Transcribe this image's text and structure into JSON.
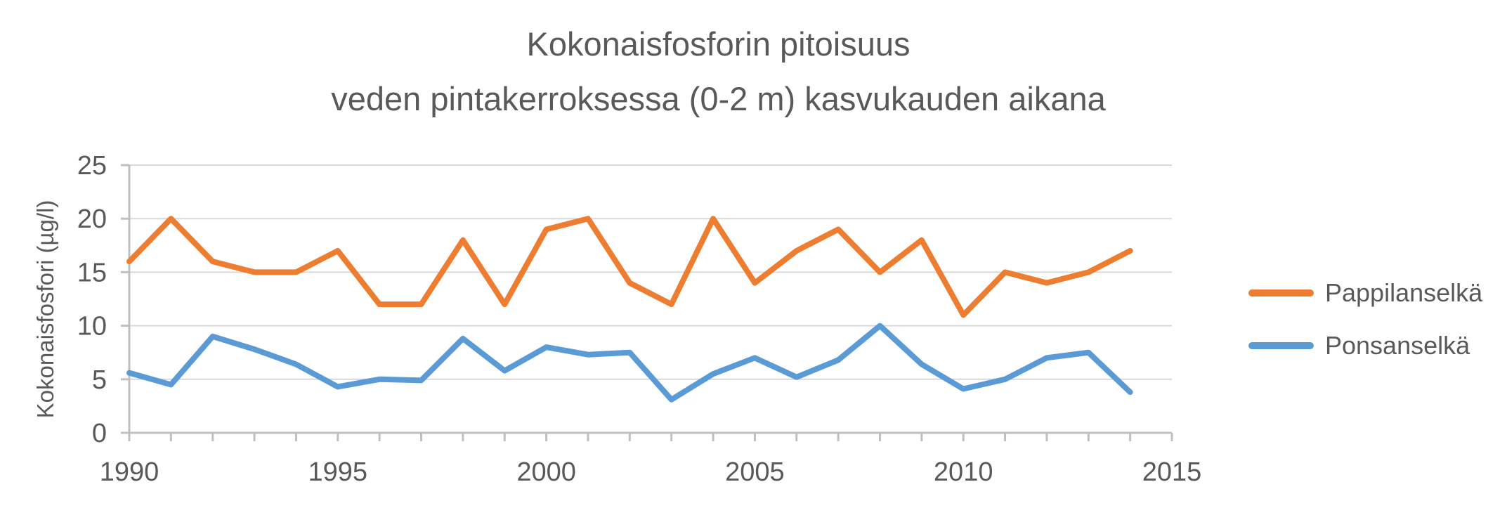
{
  "title": {
    "line1": "Kokonaisfosforin pitoisuus",
    "line2": "veden pintakerroksessa (0-2 m) kasvukauden aikana"
  },
  "chart_data": {
    "type": "line",
    "title": "Kokonaisfosforin pitoisuus veden pintakerroksessa (0-2 m) kasvukauden aikana",
    "xlabel": "",
    "ylabel": "Kokonaisfosfori (µg/l)",
    "x": [
      1990,
      1991,
      1992,
      1993,
      1994,
      1995,
      1996,
      1997,
      1998,
      1999,
      2000,
      2001,
      2002,
      2003,
      2004,
      2005,
      2006,
      2007,
      2008,
      2009,
      2010,
      2011,
      2012,
      2013,
      2014
    ],
    "series": [
      {
        "name": "Pappilanselkä",
        "color": "#ED7D31",
        "values": [
          16,
          20,
          16,
          15,
          15,
          17,
          12,
          12,
          18,
          12,
          19,
          20,
          14,
          12,
          20,
          14,
          17,
          19,
          15,
          18,
          11,
          15,
          14,
          15,
          17
        ]
      },
      {
        "name": "Ponsanselkä",
        "color": "#5B9BD5",
        "values": [
          5.6,
          4.5,
          9,
          7.8,
          6.4,
          4.3,
          5,
          4.9,
          8.8,
          5.8,
          8,
          7.3,
          7.5,
          3.1,
          5.5,
          7,
          5.2,
          6.8,
          10,
          6.4,
          4.1,
          5,
          7,
          7.5,
          3.8
        ]
      }
    ],
    "xlim": [
      1990,
      2015
    ],
    "ylim": [
      0,
      25
    ],
    "xticks": [
      1990,
      1995,
      2000,
      2005,
      2010,
      2015
    ],
    "yticks": [
      0,
      5,
      10,
      15,
      20,
      25
    ],
    "grid": true,
    "legend_position": "right"
  },
  "colors": {
    "text": "#595959",
    "gridline": "#D9D9D9",
    "axis": "#BFBFBF"
  }
}
